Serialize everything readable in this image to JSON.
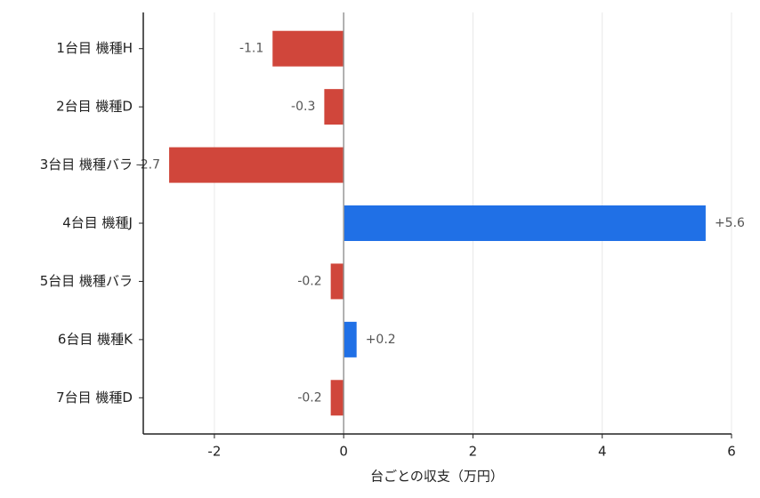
{
  "chart_data": {
    "type": "barh",
    "categories": [
      "1台目 機種H",
      "2台目 機種D",
      "3台目 機種バラ",
      "4台目 機種J",
      "5台目 機種バラ",
      "6台目 機種K",
      "7台目 機種D"
    ],
    "values": [
      -1.1,
      -0.3,
      -2.7,
      5.6,
      -0.2,
      0.2,
      -0.2
    ],
    "value_labels": [
      "-1.1",
      "-0.3",
      "-2.7",
      "+5.6",
      "-0.2",
      "+0.2",
      "-0.2"
    ],
    "colors": [
      "#d0463b",
      "#d0463b",
      "#d0463b",
      "#2070e6",
      "#d0463b",
      "#2070e6",
      "#d0463b"
    ],
    "xlabel": "台ごとの収支（万円）",
    "xlim": [
      -3.1,
      6.0
    ],
    "xticks": [
      -2,
      0,
      2,
      4,
      6
    ],
    "grid": true
  }
}
